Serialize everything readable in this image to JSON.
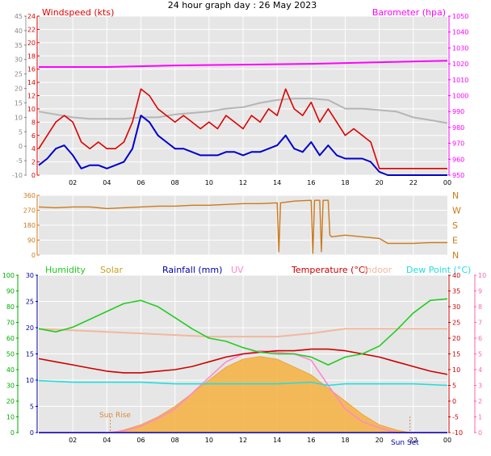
{
  "title": "24 hour graph day : 26 May 2023",
  "colors": {
    "wind_speed": "#dd0000",
    "wind_avg": "#0000cc",
    "gust_grey": "#b5b5b5",
    "barometer": "#ff00ff",
    "direction": "#cc7a1a",
    "humidity": "#22cc22",
    "solar": "#f5b040",
    "rainfall": "#0000aa",
    "uv": "#ff88cc",
    "temperature": "#cc0000",
    "indoor": "#f0b8a0",
    "dewpoint": "#22dddd",
    "sunrise_marker": "#d48a40",
    "left_axis_green": "#00aa00",
    "right_axis_pink": "#ff66aa",
    "plot_bg": "#e6e6e6",
    "grid": "#ffffff"
  },
  "chart_data": [
    {
      "type": "line",
      "panel": "wind",
      "title": "Windspeed (kts)",
      "right_title": "Barometer (hpa)",
      "x_ticks": [
        "02",
        "04",
        "06",
        "08",
        "10",
        "12",
        "14",
        "16",
        "18",
        "20",
        "22",
        "00"
      ],
      "x_range_hours": [
        0,
        24
      ],
      "left_axis": {
        "min": -10,
        "max": 45,
        "ticks": [
          -10,
          -5,
          0,
          5,
          10,
          15,
          20,
          25,
          30,
          35,
          40,
          45
        ]
      },
      "inner_axis": {
        "min": 0,
        "max": 24,
        "ticks": [
          0,
          2,
          4,
          6,
          8,
          10,
          12,
          14,
          16,
          18,
          20,
          22,
          24
        ]
      },
      "right_axis": {
        "min": 950,
        "max": 1050,
        "ticks": [
          950,
          960,
          970,
          980,
          990,
          1000,
          1010,
          1020,
          1030,
          1040,
          1050
        ]
      },
      "series": [
        {
          "key": "wind_speed",
          "axis": "inner",
          "x": [
            0,
            0.5,
            1,
            1.5,
            2,
            2.5,
            3,
            3.5,
            4,
            4.5,
            5,
            5.5,
            6,
            6.5,
            7,
            7.5,
            8,
            8.5,
            9,
            9.5,
            10,
            10.5,
            11,
            11.5,
            12,
            12.5,
            13,
            13.5,
            14,
            14.5,
            15,
            15.5,
            16,
            16.5,
            17,
            17.5,
            18,
            18.5,
            19,
            19.5,
            20,
            20.5,
            21,
            21.5,
            22,
            22.5,
            23,
            23.5,
            24
          ],
          "values": [
            4,
            6,
            8,
            9,
            8,
            5,
            4,
            5,
            4,
            4,
            5,
            8,
            13,
            12,
            10,
            9,
            8,
            9,
            8,
            7,
            8,
            7,
            9,
            8,
            7,
            9,
            8,
            10,
            9,
            13,
            10,
            9,
            11,
            8,
            10,
            8,
            6,
            7,
            6,
            5,
            1,
            1,
            1,
            1,
            1,
            1,
            1,
            1,
            1
          ]
        },
        {
          "key": "wind_avg",
          "axis": "inner",
          "x": [
            0,
            0.5,
            1,
            1.5,
            2,
            2.5,
            3,
            3.5,
            4,
            4.5,
            5,
            5.5,
            6,
            6.5,
            7,
            7.5,
            8,
            8.5,
            9,
            9.5,
            10,
            10.5,
            11,
            11.5,
            12,
            12.5,
            13,
            13.5,
            14,
            14.5,
            15,
            15.5,
            16,
            16.5,
            17,
            17.5,
            18,
            18.5,
            19,
            19.5,
            20,
            20.5,
            21,
            21.5,
            22,
            22.5,
            23,
            23.5,
            24
          ],
          "values": [
            1.5,
            2.5,
            4,
            4.5,
            3,
            1,
            1.5,
            1.5,
            1,
            1.5,
            2,
            4,
            9,
            8,
            6,
            5,
            4,
            4,
            3.5,
            3,
            3,
            3,
            3.5,
            3.5,
            3,
            3.5,
            3.5,
            4,
            4.5,
            6,
            4,
            3.5,
            5,
            3,
            4.5,
            3,
            2.5,
            2.5,
            2.5,
            2,
            0.5,
            0,
            0,
            0,
            0,
            0,
            0,
            0,
            0
          ]
        },
        {
          "key": "gust_grey",
          "axis": "left",
          "x": [
            0,
            1,
            2,
            3,
            4,
            5,
            6,
            7,
            8,
            9,
            10,
            11,
            12,
            13,
            14,
            15,
            16,
            17,
            18,
            19,
            20,
            21,
            22,
            23,
            24
          ],
          "values": [
            12,
            11,
            10,
            9.5,
            9.5,
            9.5,
            10,
            10,
            11,
            11.5,
            12,
            13,
            13.5,
            15,
            16,
            16.5,
            16.5,
            16,
            13,
            13,
            12.5,
            12,
            10,
            9,
            8
          ]
        },
        {
          "key": "barometer",
          "axis": "right",
          "x": [
            0,
            4,
            8,
            12,
            16,
            20,
            24
          ],
          "values": [
            1018,
            1018,
            1019,
            1019.5,
            1020,
            1021,
            1022
          ]
        }
      ]
    },
    {
      "type": "line",
      "panel": "direction",
      "x_range_hours": [
        0,
        24
      ],
      "left_axis": {
        "min": 0,
        "max": 360,
        "ticks": [
          0,
          90,
          180,
          270,
          360
        ]
      },
      "right_labels": [
        "N",
        "W",
        "S",
        "E",
        "N"
      ],
      "series": [
        {
          "key": "direction",
          "x": [
            0,
            1,
            2,
            3,
            4,
            5,
            6,
            7,
            8,
            9,
            10,
            11,
            12,
            13,
            14,
            14.1,
            14.2,
            15,
            16,
            16.1,
            16.2,
            16.5,
            16.6,
            16.7,
            17,
            17.1,
            17.2,
            18,
            19,
            20,
            20.5,
            21,
            22,
            23,
            24
          ],
          "values": [
            290,
            285,
            290,
            290,
            280,
            285,
            290,
            295,
            295,
            300,
            300,
            305,
            310,
            310,
            315,
            20,
            315,
            325,
            330,
            10,
            330,
            330,
            20,
            330,
            330,
            120,
            110,
            120,
            110,
            100,
            70,
            70,
            70,
            75,
            75
          ]
        }
      ]
    },
    {
      "type": "line",
      "panel": "temperature",
      "legend": [
        "Humidity",
        "Solar",
        "Rainfall (mm)",
        "UV",
        "Temperature (°C)",
        "Indoor",
        "Dew Point (°C)"
      ],
      "annotations": [
        "Sun Rise",
        "Sun Set"
      ],
      "x_range_hours": [
        0,
        24
      ],
      "left_axis": {
        "min": 0,
        "max": 100,
        "ticks": [
          0,
          10,
          20,
          30,
          40,
          50,
          60,
          70,
          80,
          90,
          100
        ]
      },
      "inner_axis": {
        "min": 0,
        "max": 30,
        "ticks": [
          0,
          5,
          10,
          15,
          20,
          25,
          30
        ]
      },
      "right_axis": {
        "min": -10,
        "max": 40,
        "ticks": [
          -10,
          -5,
          0,
          5,
          10,
          15,
          20,
          25,
          30,
          35,
          40
        ]
      },
      "right_axis_uv": {
        "min": 0,
        "max": 10,
        "ticks": [
          0,
          1,
          2,
          3,
          4,
          5,
          6,
          7,
          8,
          9,
          10
        ]
      },
      "sunrise_hour": 4.2,
      "sunset_hour": 21.8,
      "series": [
        {
          "key": "humidity",
          "axis": "left",
          "x": [
            0,
            1,
            2,
            3,
            4,
            5,
            6,
            7,
            8,
            9,
            10,
            11,
            12,
            13,
            14,
            15,
            16,
            17,
            18,
            19,
            20,
            21,
            22,
            23,
            24
          ],
          "values": [
            66,
            64,
            67,
            72,
            77,
            82,
            84,
            80,
            73,
            66,
            60,
            58,
            54,
            51,
            50,
            50,
            48,
            43,
            48,
            50,
            55,
            65,
            76,
            84,
            85
          ]
        },
        {
          "key": "temperature",
          "axis": "right",
          "x": [
            0,
            1,
            2,
            3,
            4,
            5,
            6,
            7,
            8,
            9,
            10,
            11,
            12,
            13,
            14,
            15,
            16,
            17,
            18,
            19,
            20,
            21,
            22,
            23,
            24
          ],
          "values": [
            13.5,
            12.5,
            11.5,
            10.5,
            9.5,
            9,
            9,
            9.5,
            10,
            11,
            12.5,
            14,
            15,
            15.5,
            16,
            16,
            16.5,
            16.5,
            16,
            15,
            14,
            12.5,
            11,
            9.5,
            8.5
          ]
        },
        {
          "key": "indoor",
          "axis": "right",
          "x": [
            0,
            2,
            4,
            6,
            8,
            10,
            12,
            14,
            16,
            18,
            20,
            22,
            24
          ],
          "values": [
            23,
            22.5,
            22,
            21.5,
            21,
            20.5,
            20.5,
            20.5,
            21.5,
            23,
            23,
            23,
            23
          ]
        },
        {
          "key": "dewpoint",
          "axis": "right",
          "x": [
            0,
            2,
            4,
            6,
            8,
            10,
            12,
            14,
            16,
            17,
            18,
            20,
            22,
            24
          ],
          "values": [
            6.5,
            6,
            6,
            6,
            5.5,
            5.5,
            5.5,
            5.5,
            6,
            5,
            5.5,
            5.5,
            5.5,
            5
          ]
        },
        {
          "key": "rainfall",
          "axis": "inner",
          "x": [
            0,
            24
          ],
          "values": [
            0,
            0
          ]
        },
        {
          "key": "uv",
          "axis": "uv",
          "x": [
            0,
            4,
            5,
            6,
            7,
            8,
            9,
            10,
            11,
            12,
            13,
            14,
            15,
            16,
            17,
            18,
            19,
            20,
            21,
            24
          ],
          "values": [
            0,
            0,
            0.1,
            0.4,
            0.9,
            1.5,
            2.5,
            3.5,
            4.5,
            5,
            5.2,
            5.1,
            5,
            4.6,
            3,
            1.5,
            0.7,
            0.3,
            0,
            0
          ]
        },
        {
          "key": "solar",
          "axis": "inner",
          "x": [
            4.2,
            5,
            6,
            7,
            8,
            9,
            10,
            11,
            12,
            13,
            14,
            15,
            16,
            17,
            18,
            19,
            20,
            21,
            21.8
          ],
          "values": [
            0,
            0.5,
            1.5,
            3,
            5,
            7.5,
            10,
            12.5,
            14,
            14.5,
            14,
            12.5,
            11,
            8.5,
            6,
            3.5,
            1.5,
            0.5,
            0
          ]
        }
      ]
    }
  ]
}
